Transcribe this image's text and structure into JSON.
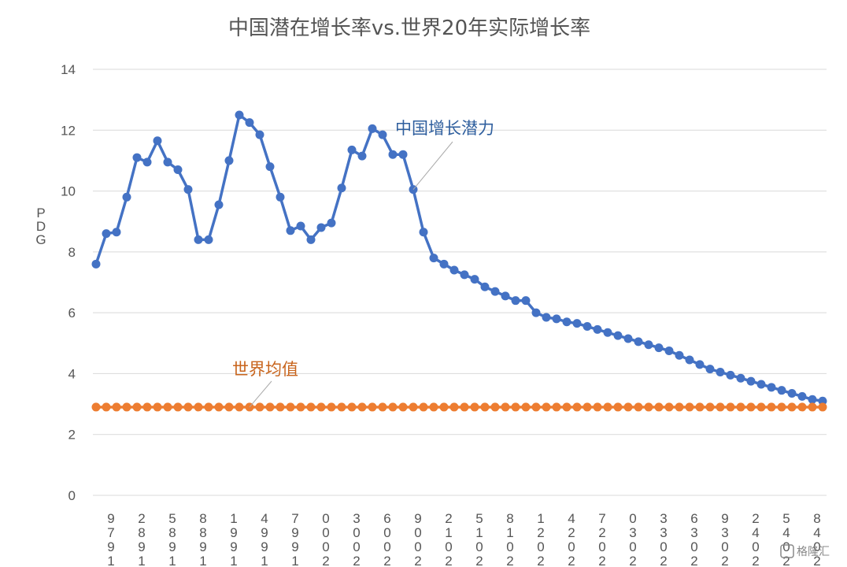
{
  "chart_data": {
    "type": "line",
    "title": "中国潜在增长率vs.世界20年实际增长率",
    "ylabel": "GDP",
    "ylim": [
      0,
      14
    ],
    "yticks": [
      0,
      2,
      4,
      6,
      8,
      10,
      12,
      14
    ],
    "grid": true,
    "x": [
      1979,
      1980,
      1981,
      1982,
      1983,
      1984,
      1985,
      1986,
      1987,
      1988,
      1989,
      1990,
      1991,
      1992,
      1993,
      1994,
      1995,
      1996,
      1997,
      1998,
      1999,
      2000,
      2001,
      2002,
      2003,
      2004,
      2005,
      2006,
      2007,
      2008,
      2009,
      2010,
      2011,
      2012,
      2013,
      2014,
      2015,
      2016,
      2017,
      2018,
      2019,
      2020,
      2021,
      2022,
      2023,
      2024,
      2025,
      2026,
      2027,
      2028,
      2029,
      2030,
      2031,
      2032,
      2033,
      2034,
      2035,
      2036,
      2037,
      2038,
      2039,
      2040,
      2041,
      2042,
      2043,
      2044,
      2045,
      2046,
      2047,
      2048,
      2049,
      2050
    ],
    "x_tick_labels": [
      "1979",
      "1982",
      "1985",
      "1988",
      "1991",
      "1994",
      "1997",
      "2000",
      "2003",
      "2006",
      "2009",
      "2012",
      "2015",
      "2018",
      "2021",
      "2024",
      "2027",
      "2030",
      "2033",
      "2036",
      "2039",
      "2042",
      "2045",
      "2048"
    ],
    "series": [
      {
        "name": "中国增长潜力",
        "color": "#4472c4",
        "values": [
          7.6,
          8.6,
          8.65,
          9.8,
          11.1,
          10.95,
          11.65,
          10.95,
          10.7,
          10.05,
          8.4,
          8.4,
          9.55,
          11.0,
          12.5,
          12.25,
          11.85,
          10.8,
          9.8,
          8.7,
          8.85,
          8.4,
          8.8,
          8.95,
          10.1,
          11.35,
          11.15,
          12.05,
          11.85,
          11.2,
          11.2,
          10.05,
          8.65,
          7.8,
          7.6,
          7.4,
          7.25,
          7.1,
          6.85,
          6.7,
          6.55,
          6.4,
          6.4,
          6.0,
          5.85,
          5.8,
          5.7,
          5.65,
          5.55,
          5.45,
          5.35,
          5.25,
          5.15,
          5.05,
          4.95,
          4.85,
          4.75,
          4.6,
          4.45,
          4.3,
          4.15,
          4.05,
          3.95,
          3.85,
          3.75,
          3.65,
          3.55,
          3.45,
          3.35,
          3.25,
          3.15,
          3.1
        ]
      },
      {
        "name": "世界均值",
        "color": "#ed7d31",
        "values": [
          2.9,
          2.9,
          2.9,
          2.9,
          2.9,
          2.9,
          2.9,
          2.9,
          2.9,
          2.9,
          2.9,
          2.9,
          2.9,
          2.9,
          2.9,
          2.9,
          2.9,
          2.9,
          2.9,
          2.9,
          2.9,
          2.9,
          2.9,
          2.9,
          2.9,
          2.9,
          2.9,
          2.9,
          2.9,
          2.9,
          2.9,
          2.9,
          2.9,
          2.9,
          2.9,
          2.9,
          2.9,
          2.9,
          2.9,
          2.9,
          2.9,
          2.9,
          2.9,
          2.9,
          2.9,
          2.9,
          2.9,
          2.9,
          2.9,
          2.9,
          2.9,
          2.9,
          2.9,
          2.9,
          2.9,
          2.9,
          2.9,
          2.9,
          2.9,
          2.9,
          2.9,
          2.9,
          2.9,
          2.9,
          2.9,
          2.9,
          2.9,
          2.9,
          2.9,
          2.9,
          2.9,
          2.9
        ]
      }
    ],
    "annotations": [
      {
        "text": "中国增长潜力",
        "series": 0,
        "x": 2010
      },
      {
        "text": "世界均值",
        "series": 1,
        "x": 1994
      }
    ]
  },
  "watermark": "格隆汇"
}
